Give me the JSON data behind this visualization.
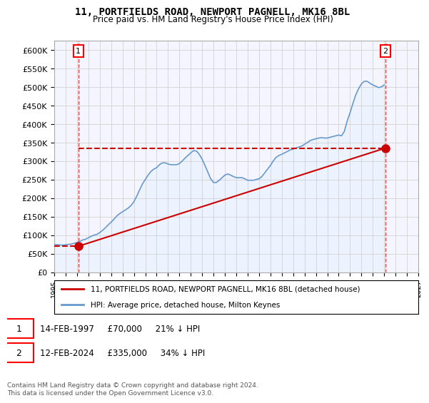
{
  "title": "11, PORTFIELDS ROAD, NEWPORT PAGNELL, MK16 8BL",
  "subtitle": "Price paid vs. HM Land Registry's House Price Index (HPI)",
  "ylabel": "",
  "ylim": [
    0,
    625000
  ],
  "yticks": [
    0,
    50000,
    100000,
    150000,
    200000,
    250000,
    300000,
    350000,
    400000,
    450000,
    500000,
    550000,
    600000
  ],
  "ytick_labels": [
    "£0",
    "£50K",
    "£100K",
    "£150K",
    "£200K",
    "£250K",
    "£300K",
    "£350K",
    "£400K",
    "£450K",
    "£500K",
    "£550K",
    "£600K"
  ],
  "sale_color": "#cc0000",
  "hpi_color": "#6699cc",
  "hpi_fill_color": "#ddeeff",
  "background_color": "#f5f5ff",
  "grid_color": "#cccccc",
  "annotation1_label": "1",
  "annotation1_date": "14-FEB-1997",
  "annotation1_price": 70000,
  "annotation1_year": 1997.12,
  "annotation1_text": "14-FEB-1997     £70,000     21% ↓ HPI",
  "annotation2_label": "2",
  "annotation2_date": "12-FEB-2024",
  "annotation2_price": 335000,
  "annotation2_year": 2024.12,
  "annotation2_text": "12-FEB-2024     £335,000     34% ↓ HPI",
  "legend_line1": "11, PORTFIELDS ROAD, NEWPORT PAGNELL, MK16 8BL (detached house)",
  "legend_line2": "HPI: Average price, detached house, Milton Keynes",
  "footnote": "Contains HM Land Registry data © Crown copyright and database right 2024.\nThis data is licensed under the Open Government Licence v3.0.",
  "hpi_data": {
    "years": [
      1995.0,
      1995.25,
      1995.5,
      1995.75,
      1996.0,
      1996.25,
      1996.5,
      1996.75,
      1997.0,
      1997.25,
      1997.5,
      1997.75,
      1998.0,
      1998.25,
      1998.5,
      1998.75,
      1999.0,
      1999.25,
      1999.5,
      1999.75,
      2000.0,
      2000.25,
      2000.5,
      2000.75,
      2001.0,
      2001.25,
      2001.5,
      2001.75,
      2002.0,
      2002.25,
      2002.5,
      2002.75,
      2003.0,
      2003.25,
      2003.5,
      2003.75,
      2004.0,
      2004.25,
      2004.5,
      2004.75,
      2005.0,
      2005.25,
      2005.5,
      2005.75,
      2006.0,
      2006.25,
      2006.5,
      2006.75,
      2007.0,
      2007.25,
      2007.5,
      2007.75,
      2008.0,
      2008.25,
      2008.5,
      2008.75,
      2009.0,
      2009.25,
      2009.5,
      2009.75,
      2010.0,
      2010.25,
      2010.5,
      2010.75,
      2011.0,
      2011.25,
      2011.5,
      2011.75,
      2012.0,
      2012.25,
      2012.5,
      2012.75,
      2013.0,
      2013.25,
      2013.5,
      2013.75,
      2014.0,
      2014.25,
      2014.5,
      2014.75,
      2015.0,
      2015.25,
      2015.5,
      2015.75,
      2016.0,
      2016.25,
      2016.5,
      2016.75,
      2017.0,
      2017.25,
      2017.5,
      2017.75,
      2018.0,
      2018.25,
      2018.5,
      2018.75,
      2019.0,
      2019.25,
      2019.5,
      2019.75,
      2020.0,
      2020.25,
      2020.5,
      2020.75,
      2021.0,
      2021.25,
      2021.5,
      2021.75,
      2022.0,
      2022.25,
      2022.5,
      2022.75,
      2023.0,
      2023.25,
      2023.5,
      2023.75,
      2024.0
    ],
    "values": [
      75000,
      74000,
      73500,
      73000,
      74000,
      75000,
      76000,
      78000,
      80000,
      83000,
      87000,
      89000,
      93000,
      97000,
      100000,
      102000,
      107000,
      113000,
      120000,
      128000,
      135000,
      143000,
      152000,
      158000,
      163000,
      168000,
      173000,
      180000,
      190000,
      205000,
      222000,
      238000,
      250000,
      262000,
      272000,
      278000,
      282000,
      290000,
      295000,
      295000,
      292000,
      290000,
      290000,
      290000,
      293000,
      300000,
      308000,
      315000,
      322000,
      328000,
      327000,
      318000,
      305000,
      288000,
      270000,
      252000,
      242000,
      242000,
      248000,
      255000,
      262000,
      265000,
      262000,
      258000,
      255000,
      255000,
      255000,
      252000,
      248000,
      248000,
      248000,
      250000,
      252000,
      258000,
      268000,
      278000,
      288000,
      300000,
      310000,
      315000,
      318000,
      322000,
      326000,
      330000,
      332000,
      335000,
      338000,
      340000,
      345000,
      350000,
      355000,
      358000,
      360000,
      362000,
      363000,
      362000,
      362000,
      364000,
      366000,
      368000,
      370000,
      368000,
      380000,
      408000,
      430000,
      455000,
      478000,
      495000,
      508000,
      515000,
      515000,
      510000,
      505000,
      502000,
      498000,
      500000,
      505000
    ]
  },
  "price_data": {
    "years": [
      1997.12,
      2024.12
    ],
    "values": [
      70000,
      335000
    ]
  }
}
